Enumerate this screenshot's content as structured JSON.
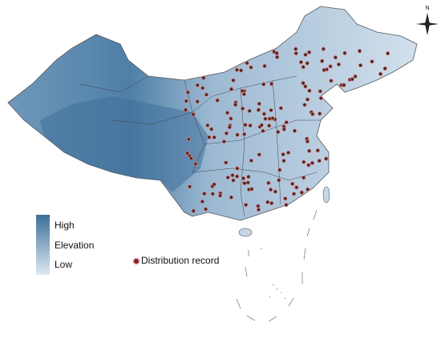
{
  "compass": {
    "label": "N"
  },
  "elevation_legend": {
    "high": "High",
    "title": "Elevation",
    "low": "Low"
  },
  "marker_legend": {
    "label": "Distribution record"
  }
}
